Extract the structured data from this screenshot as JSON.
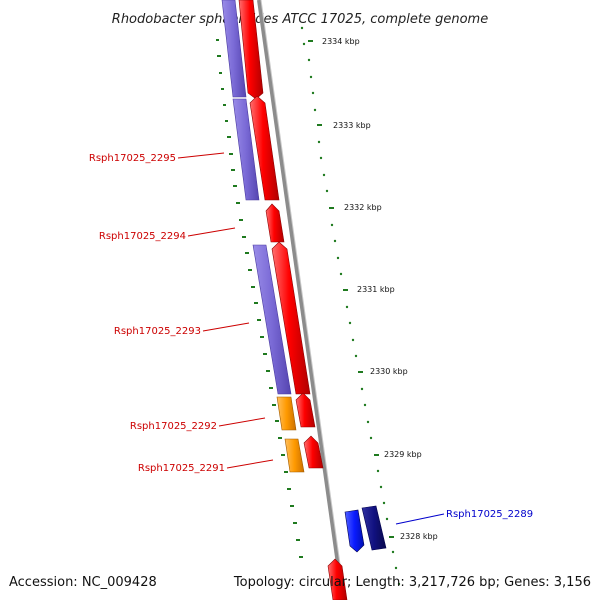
{
  "title": "Rhodobacter sphaeroides ATCC 17025, complete genome",
  "footer": {
    "accession": "Accession: NC_009428",
    "summary": "Topology: circular; Length: 3,217,726 bp; Genes: 3,156"
  },
  "scale": {
    "ticks": [
      "2334 kbp",
      "2333 kbp",
      "2332 kbp",
      "2331 kbp",
      "2330 kbp",
      "2329 kbp",
      "2328 kbp"
    ]
  },
  "gene_labels": [
    {
      "text": "Rsph17025_2295",
      "color": "#cc0000"
    },
    {
      "text": "Rsph17025_2294",
      "color": "#cc0000"
    },
    {
      "text": "Rsph17025_2293",
      "color": "#cc0000"
    },
    {
      "text": "Rsph17025_2292",
      "color": "#cc0000"
    },
    {
      "text": "Rsph17025_2291",
      "color": "#cc0000"
    },
    {
      "text": "Rsph17025_2289",
      "color": "#0000cc"
    }
  ],
  "colors": {
    "backbone": "#8c8c8c",
    "forward_cds": "#ff0000",
    "reverse_cds": "#7a6ad6",
    "orange_feature": "#ff9a00",
    "blue_feature": "#0a1bff",
    "navy_feature": "#111180",
    "scale_dots": "#1f7a1f"
  }
}
